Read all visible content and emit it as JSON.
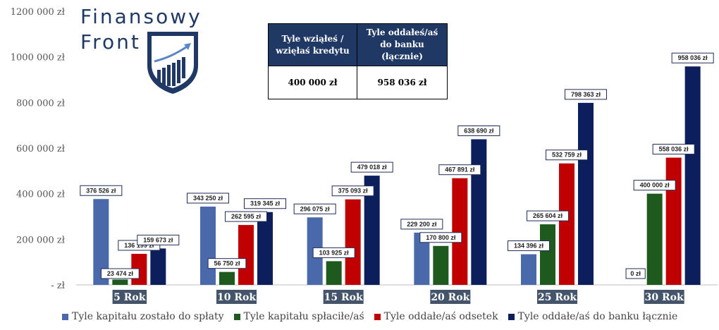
{
  "logo": {
    "line1": "Finansowy",
    "line2": "Front"
  },
  "summary_table": {
    "headers": [
      "Tyle wziąłeś / wzięłaś kredytu",
      "Tyle oddałeś/aś do banku (łącznie)"
    ],
    "values": [
      "400 000 zł",
      "958 036 zł"
    ]
  },
  "colors": {
    "remaining": "#4a69ab",
    "repaid": "#1e5a1e",
    "interest": "#c00000",
    "total": "#0c1f5c",
    "logo": "#1f3864"
  },
  "chart_data": {
    "type": "bar",
    "categories": [
      "5 Rok",
      "10 Rok",
      "15 Rok",
      "20 Rok",
      "25 Rok",
      "30 Rok"
    ],
    "series": [
      {
        "name": "Tyle kapitału zostało do spłaty",
        "values": [
          376526,
          343250,
          296075,
          229200,
          134396,
          0
        ],
        "labels": [
          "376 526 zł",
          "343 250 zł",
          "296 075 zł",
          "229 200 zł",
          "134 396 zł",
          "0 zł"
        ]
      },
      {
        "name": "Tyle kapitału spłaciłe/aś",
        "values": [
          23474,
          56750,
          103925,
          170800,
          265604,
          400000
        ],
        "labels": [
          "23 474 zł",
          "56 750 zł",
          "103 925 zł",
          "170 800 zł",
          "265 604 zł",
          "400 000 zł"
        ]
      },
      {
        "name": "Tyle oddałe/aś odsetek",
        "values": [
          136199,
          262595,
          375093,
          467891,
          532759,
          558036
        ],
        "labels": [
          "136 199 zł",
          "262 595 zł",
          "375 093 zł",
          "467 891 zł",
          "532 759 zł",
          "558 036 zł"
        ]
      },
      {
        "name": "Tyle oddałe/aś do banku łącznie",
        "values": [
          159673,
          319345,
          479018,
          638690,
          798363,
          958036
        ],
        "labels": [
          "159 673 zł",
          "319 345 zł",
          "479 018 zł",
          "638 690 zł",
          "798 363 zł",
          "958 036 zł"
        ]
      }
    ],
    "yticks": [
      "- zł",
      "200 000 zł",
      "400 000 zł",
      "600 000 zł",
      "800 000 zł",
      "1000 000 zł",
      "1200 000 zł"
    ],
    "ylim": [
      0,
      1200000
    ],
    "grid": false,
    "legend_position": "bottom"
  }
}
